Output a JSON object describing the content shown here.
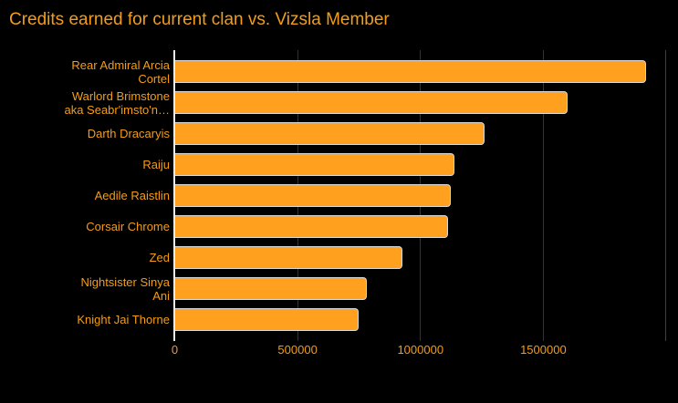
{
  "chart_data": {
    "type": "bar",
    "orientation": "horizontal",
    "title": "Credits earned for current clan vs. Vizsla Member",
    "categories": [
      "Rear Admiral Arcia Cortel",
      "Warlord Brimstone aka Seabr'imsto'n…",
      "Darth Dracaryis",
      "Raiju",
      "Aedile Raistlin",
      "Corsair Chrome",
      "Zed",
      "Nightsister Sinya Ani",
      "Knight Jai Thorne"
    ],
    "category_lines": [
      [
        "Rear Admiral Arcia",
        "Cortel"
      ],
      [
        "Warlord Brimstone",
        "aka Seabr'imsto'n…"
      ],
      [
        "Darth Dracaryis"
      ],
      [
        "Raiju"
      ],
      [
        "Aedile Raistlin"
      ],
      [
        "Corsair Chrome"
      ],
      [
        "Zed"
      ],
      [
        "Nightsister Sinya",
        "Ani"
      ],
      [
        "Knight Jai Thorne"
      ]
    ],
    "values": [
      1920000,
      1600000,
      1260000,
      1140000,
      1124000,
      1112000,
      925000,
      780000,
      747000
    ],
    "xlim": [
      0,
      2000000
    ],
    "xticks": [
      0,
      500000,
      1000000,
      1500000
    ],
    "xtick_labels": [
      "0",
      "500000",
      "1000000",
      "1500000"
    ],
    "grid": true,
    "legend": "none",
    "colors": {
      "background": "#000000",
      "bar_fill": "#FFA01E",
      "bar_border": "#D8D8D8",
      "text_orange": "#F49D15",
      "gridline": "#333333",
      "plot_border": "#3F3F3F",
      "axis_line": "#ECECEC"
    }
  }
}
